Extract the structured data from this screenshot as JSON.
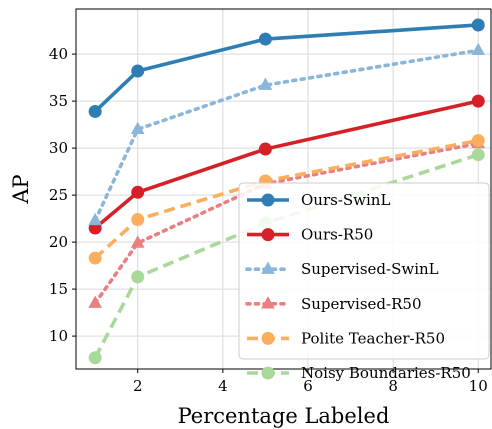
{
  "chart_data": {
    "type": "line",
    "title": "",
    "xlabel": "Percentage Labeled",
    "ylabel": "AP",
    "xlim": [
      0.55,
      10.3
    ],
    "ylim": [
      6.5,
      44.8
    ],
    "xticks": [
      2,
      4,
      6,
      8,
      10
    ],
    "yticks": [
      10,
      15,
      20,
      25,
      30,
      35,
      40
    ],
    "grid": true,
    "legend_position": "lower-right",
    "x": [
      1,
      2,
      5,
      10
    ],
    "series": [
      {
        "name": "Ours-SwinL",
        "values": [
          33.9,
          38.2,
          41.6,
          43.1
        ],
        "color": "#2e7eb4",
        "marker": "circle",
        "style": "solid"
      },
      {
        "name": "Ours-R50",
        "values": [
          21.5,
          25.3,
          29.9,
          35.0
        ],
        "color": "#d62027",
        "marker": "circle",
        "style": "solid"
      },
      {
        "name": "Supervised-SwinL",
        "values": [
          22.3,
          32.0,
          36.7,
          40.4
        ],
        "color": "#8ab7d9",
        "marker": "triangle",
        "style": "dotted"
      },
      {
        "name": "Supervised-R50",
        "values": [
          13.5,
          19.9,
          26.2,
          30.5
        ],
        "color": "#ea7f82",
        "marker": "triangle",
        "style": "dotted"
      },
      {
        "name": "Polite Teacher-R50",
        "values": [
          18.3,
          22.4,
          26.5,
          30.8
        ],
        "color": "#fbae5e",
        "marker": "circle",
        "style": "dashed"
      },
      {
        "name": "Noisy Boundaries-R50",
        "values": [
          7.7,
          16.3,
          22.0,
          29.3
        ],
        "color": "#a9d99a",
        "marker": "circle",
        "style": "dashed"
      }
    ]
  }
}
